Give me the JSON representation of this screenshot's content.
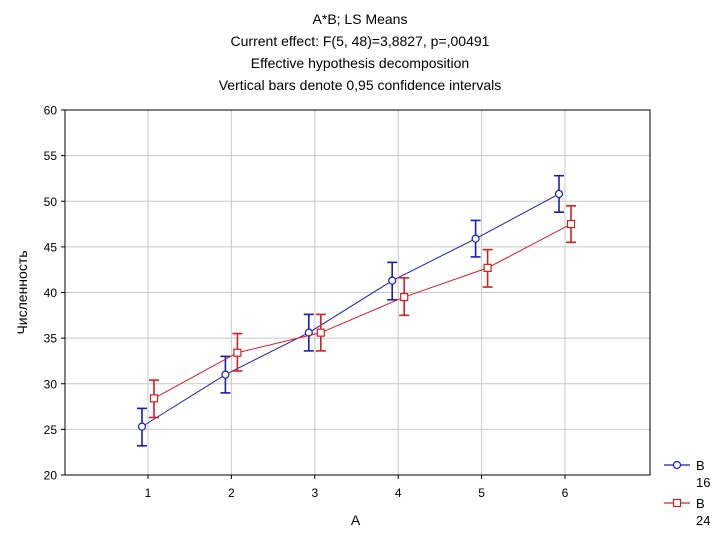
{
  "chart_data": {
    "type": "line",
    "title": "A*B; LS Means",
    "subtitle_lines": [
      "Current effect: F(5, 48)=3,8827, p=,00491",
      "Effective hypothesis decomposition",
      "Vertical bars denote 0,95 confidence intervals"
    ],
    "xlabel": "A",
    "ylabel": "Численность",
    "categories": [
      "1",
      "2",
      "3",
      "4",
      "5",
      "6"
    ],
    "ylim": [
      20,
      60
    ],
    "yticks": [
      "20",
      "25",
      "30",
      "35",
      "40",
      "45",
      "50",
      "55",
      "60"
    ],
    "grid": true,
    "legend_position": "bottom-right",
    "series": [
      {
        "name": "B 16",
        "legend_label": "B",
        "legend_sublabel": "16",
        "color": "#1c1cb4",
        "marker": "circle",
        "values": [
          25.3,
          31.0,
          35.6,
          41.3,
          45.9,
          50.8
        ],
        "ci_low": [
          23.2,
          29.0,
          33.6,
          39.2,
          43.9,
          48.8
        ],
        "ci_high": [
          27.3,
          33.0,
          37.6,
          43.3,
          47.9,
          52.8
        ]
      },
      {
        "name": "B 24",
        "legend_label": "B",
        "legend_sublabel": "24",
        "color": "#d42020",
        "marker": "square",
        "values": [
          28.4,
          33.4,
          35.6,
          39.5,
          42.7,
          47.5
        ],
        "ci_low": [
          26.3,
          31.4,
          33.6,
          37.5,
          40.6,
          45.5
        ],
        "ci_high": [
          30.4,
          35.5,
          37.6,
          41.6,
          44.7,
          49.5
        ]
      }
    ]
  }
}
